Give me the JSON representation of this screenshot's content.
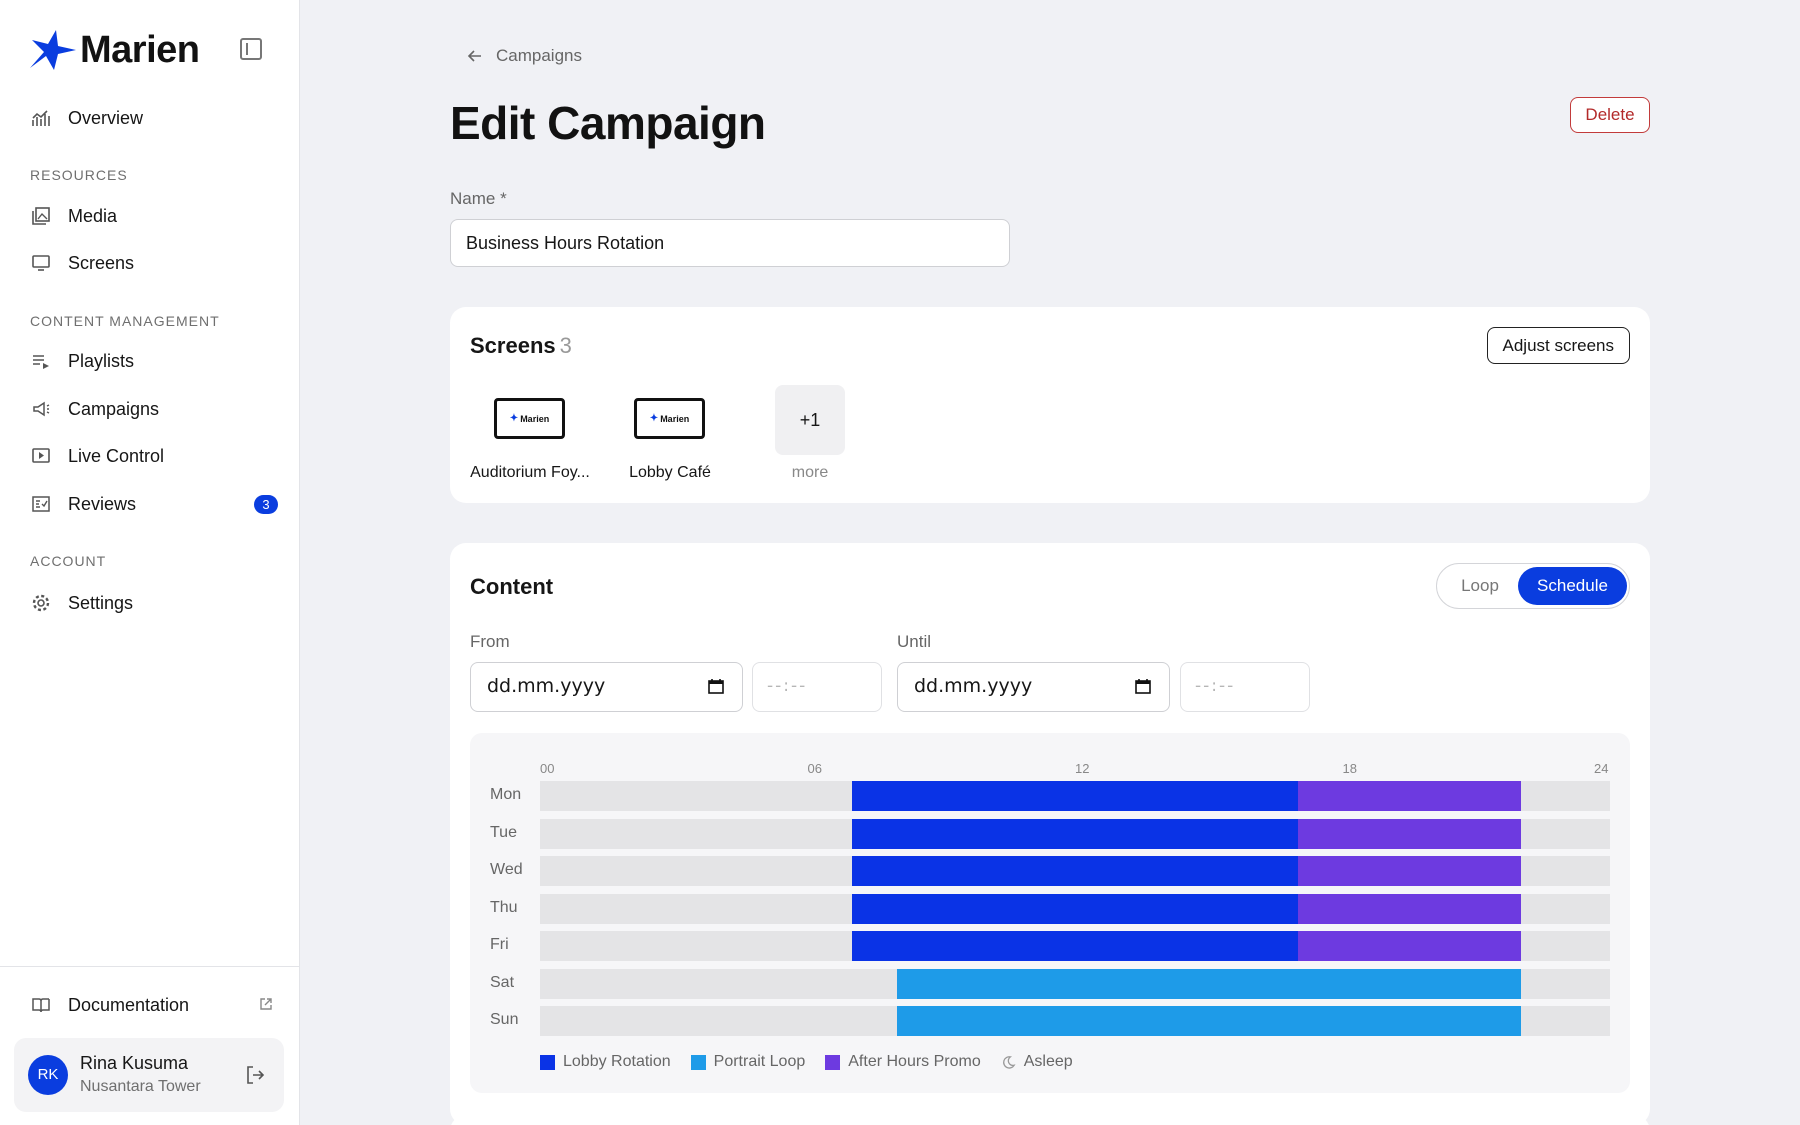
{
  "brand": {
    "name": "Marien"
  },
  "sidebar": {
    "overview": "Overview",
    "sections": {
      "resources": "RESOURCES",
      "content": "CONTENT MANAGEMENT",
      "account": "ACCOUNT"
    },
    "items": {
      "media": "Media",
      "screens": "Screens",
      "playlists": "Playlists",
      "campaigns": "Campaigns",
      "live_control": "Live Control",
      "reviews": "Reviews",
      "reviews_badge": "3",
      "settings": "Settings"
    },
    "documentation": "Documentation",
    "user": {
      "initials": "RK",
      "name": "Rina Kusuma",
      "org": "Nusantara Tower"
    }
  },
  "main": {
    "breadcrumb": "Campaigns",
    "title": "Edit Campaign",
    "delete_label": "Delete",
    "name_label": "Name *",
    "name_value": "Business Hours Rotation",
    "screens_card": {
      "title": "Screens",
      "count": "3",
      "adjust_label": "Adjust screens",
      "thumb_brand": "Marien",
      "screens": [
        "Auditorium Foy...",
        "Lobby Café"
      ],
      "more_count": "+1",
      "more_label": "more"
    },
    "content_card": {
      "title": "Content",
      "mode_options": [
        "Loop",
        "Schedule"
      ],
      "mode_selected": "Schedule",
      "from_label": "From",
      "until_label": "Until",
      "date_placeholder": "dd.mm.yyyy",
      "time_placeholder": "--:--"
    }
  },
  "colors": {
    "accent": "#0a3ddf",
    "lobby_rotation": "#0a33e6",
    "portrait_loop": "#1e9be8",
    "after_hours": "#6d3ae0",
    "asleep": "#e4e4e6",
    "danger": "#b32a2a"
  },
  "chart_data": {
    "type": "heatmap",
    "x_ticks": [
      "00",
      "06",
      "12",
      "18",
      "24"
    ],
    "x_range": [
      0,
      24
    ],
    "days": [
      "Mon",
      "Tue",
      "Wed",
      "Thu",
      "Fri",
      "Sat",
      "Sun"
    ],
    "legend": [
      "Lobby Rotation",
      "Portrait Loop",
      "After Hours Promo",
      "Asleep"
    ],
    "schedule": [
      {
        "day": "Mon",
        "blocks": [
          {
            "series": "Lobby Rotation",
            "start": 7,
            "end": 17
          },
          {
            "series": "After Hours Promo",
            "start": 17,
            "end": 22
          }
        ]
      },
      {
        "day": "Tue",
        "blocks": [
          {
            "series": "Lobby Rotation",
            "start": 7,
            "end": 17
          },
          {
            "series": "After Hours Promo",
            "start": 17,
            "end": 22
          }
        ]
      },
      {
        "day": "Wed",
        "blocks": [
          {
            "series": "Lobby Rotation",
            "start": 7,
            "end": 17
          },
          {
            "series": "After Hours Promo",
            "start": 17,
            "end": 22
          }
        ]
      },
      {
        "day": "Thu",
        "blocks": [
          {
            "series": "Lobby Rotation",
            "start": 7,
            "end": 17
          },
          {
            "series": "After Hours Promo",
            "start": 17,
            "end": 22
          }
        ]
      },
      {
        "day": "Fri",
        "blocks": [
          {
            "series": "Lobby Rotation",
            "start": 7,
            "end": 17
          },
          {
            "series": "After Hours Promo",
            "start": 17,
            "end": 22
          }
        ]
      },
      {
        "day": "Sat",
        "blocks": [
          {
            "series": "Portrait Loop",
            "start": 8,
            "end": 22
          }
        ]
      },
      {
        "day": "Sun",
        "blocks": [
          {
            "series": "Portrait Loop",
            "start": 8,
            "end": 22
          }
        ]
      }
    ]
  }
}
